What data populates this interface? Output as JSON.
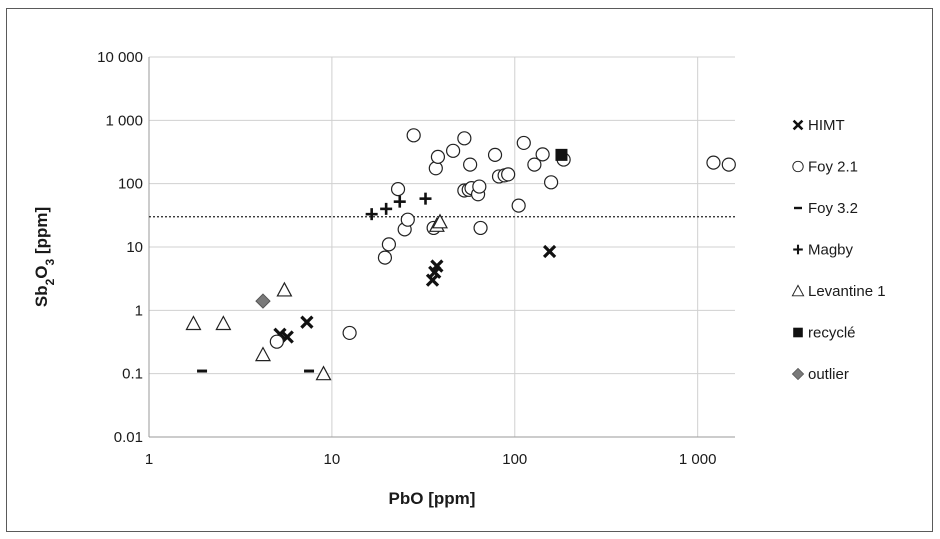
{
  "chart_data": {
    "type": "scatter",
    "title": "",
    "xlabel": "PbO [ppm]",
    "ylabel_main": "Sb",
    "ylabel_sub": "2",
    "ylabel_mid": "O",
    "ylabel_sub2": "3",
    "ylabel_unit": " [ppm]",
    "x_scale": "log",
    "y_scale": "log",
    "xlim": [
      1,
      1600
    ],
    "ylim": [
      0.01,
      10000
    ],
    "x_ticks": [
      {
        "value": 1,
        "label": "1"
      },
      {
        "value": 10,
        "label": "10"
      },
      {
        "value": 100,
        "label": "100"
      },
      {
        "value": 1000,
        "label": "1 000"
      }
    ],
    "y_ticks": [
      {
        "value": 0.01,
        "label": "0.01"
      },
      {
        "value": 0.1,
        "label": "0.1"
      },
      {
        "value": 1,
        "label": "1"
      },
      {
        "value": 10,
        "label": "10"
      },
      {
        "value": 100,
        "label": "100"
      },
      {
        "value": 1000,
        "label": "1 000"
      },
      {
        "value": 10000,
        "label": "10 000"
      }
    ],
    "grid": true,
    "legend_position": "right",
    "reference_line": {
      "y": 30,
      "style": "dotted"
    },
    "series": [
      {
        "name": "HIMT",
        "marker": "x",
        "color": "#111111",
        "points": [
          [
            5.2,
            0.42
          ],
          [
            5.7,
            0.38
          ],
          [
            7.3,
            0.65
          ],
          [
            35.5,
            3.0
          ],
          [
            36.5,
            4.0
          ],
          [
            37.5,
            5.0
          ],
          [
            155,
            8.5
          ]
        ]
      },
      {
        "name": "Foy 2.1",
        "marker": "circle-open",
        "color": "#222222",
        "points": [
          [
            5.0,
            0.32
          ],
          [
            12.5,
            0.44
          ],
          [
            19.5,
            6.8
          ],
          [
            20.5,
            11
          ],
          [
            23,
            82
          ],
          [
            25,
            19
          ],
          [
            26,
            27
          ],
          [
            28,
            580
          ],
          [
            36,
            20
          ],
          [
            37,
            175
          ],
          [
            38,
            265
          ],
          [
            46,
            330
          ],
          [
            53,
            520
          ],
          [
            53,
            78
          ],
          [
            56,
            80
          ],
          [
            57,
            200
          ],
          [
            58,
            85
          ],
          [
            63,
            68
          ],
          [
            64,
            90
          ],
          [
            65,
            20
          ],
          [
            78,
            285
          ],
          [
            82,
            130
          ],
          [
            88,
            135
          ],
          [
            92,
            140
          ],
          [
            105,
            45
          ],
          [
            112,
            440
          ],
          [
            128,
            200
          ],
          [
            142,
            290
          ],
          [
            158,
            105
          ],
          [
            185,
            240
          ],
          [
            1220,
            215
          ],
          [
            1480,
            200
          ]
        ]
      },
      {
        "name": "Foy 3.2",
        "marker": "dash",
        "color": "#111111",
        "points": [
          [
            1.95,
            0.11
          ],
          [
            7.5,
            0.11
          ]
        ]
      },
      {
        "name": "Magby",
        "marker": "plus",
        "color": "#111111",
        "points": [
          [
            16.5,
            33
          ],
          [
            19.8,
            40
          ],
          [
            23.5,
            52
          ],
          [
            32.5,
            58
          ]
        ]
      },
      {
        "name": "Levantine 1",
        "marker": "triangle-open",
        "color": "#222222",
        "points": [
          [
            1.75,
            0.62
          ],
          [
            2.55,
            0.62
          ],
          [
            4.2,
            0.2
          ],
          [
            5.5,
            2.1
          ],
          [
            9.0,
            0.1
          ],
          [
            37.5,
            22
          ],
          [
            39,
            25
          ]
        ]
      },
      {
        "name": "recyclé",
        "marker": "square",
        "color": "#111111",
        "points": [
          [
            180,
            285
          ]
        ]
      },
      {
        "name": "outlier",
        "marker": "diamond",
        "color": "#7a7a7a",
        "points": [
          [
            4.2,
            1.4
          ]
        ]
      }
    ]
  }
}
